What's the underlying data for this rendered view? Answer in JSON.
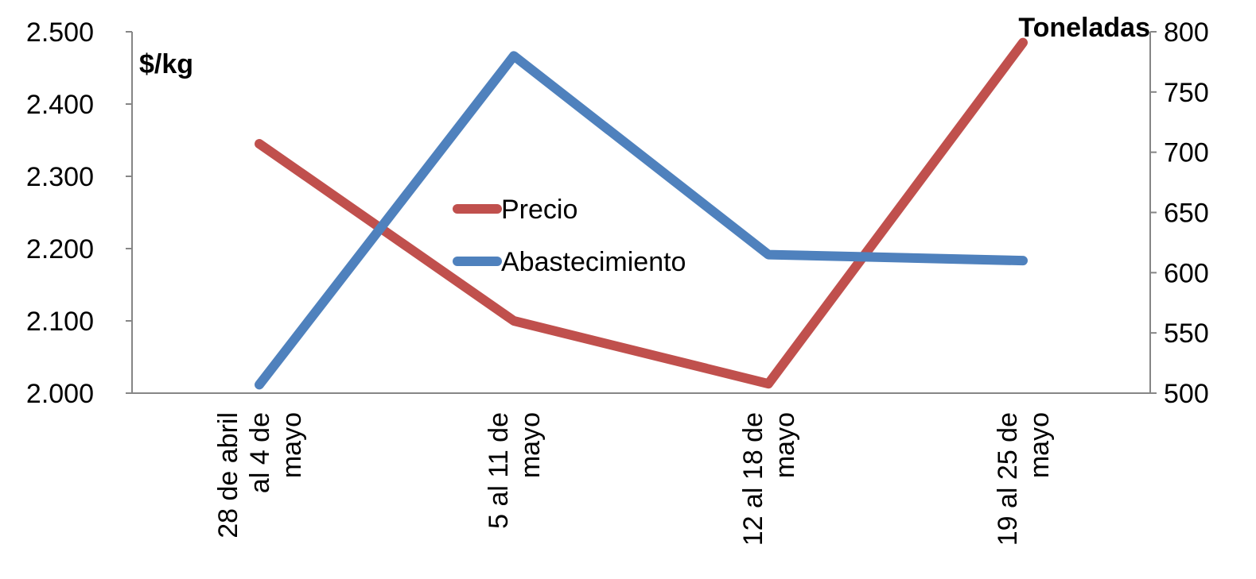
{
  "chart_data": {
    "type": "line",
    "categories": [
      [
        "28 de abril",
        "al 4 de",
        "mayo"
      ],
      [
        "5 al 11 de",
        "mayo"
      ],
      [
        "12 al 18 de",
        "mayo"
      ],
      [
        "19 al 25 de",
        "mayo"
      ]
    ],
    "left_axis": {
      "label": "$/kg",
      "range": [
        2000,
        2500
      ],
      "ticks": [
        "2.000",
        "2.100",
        "2.200",
        "2.300",
        "2.400",
        "2.500"
      ]
    },
    "right_axis": {
      "label": "Toneladas",
      "range": [
        500,
        800
      ],
      "ticks": [
        "500",
        "550",
        "600",
        "650",
        "700",
        "750",
        "800"
      ]
    },
    "series": [
      {
        "name": "Precio",
        "axis": "left",
        "color": "#C0504D",
        "values": [
          2345,
          2100,
          2013,
          2485
        ]
      },
      {
        "name": "Abastecimiento",
        "axis": "right",
        "color": "#4F81BD",
        "values": [
          507,
          780,
          615,
          610
        ]
      }
    ],
    "legend_placement": "center",
    "grid": false
  }
}
